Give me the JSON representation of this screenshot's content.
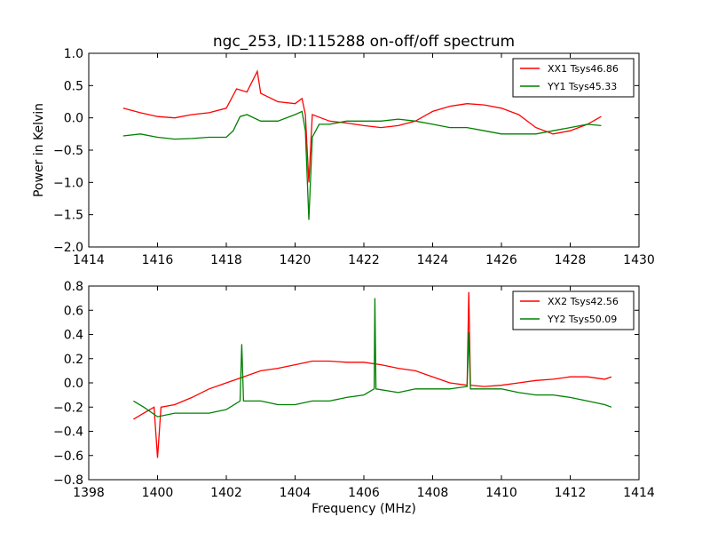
{
  "chart_data": [
    {
      "type": "line",
      "title": "ngc_253, ID:115288 on-off/off spectrum",
      "xlabel": "",
      "ylabel": "Power in Kelvin",
      "xlim": [
        1414,
        1430
      ],
      "ylim": [
        -2.0,
        1.0
      ],
      "xticks": [
        "1414",
        "1416",
        "1418",
        "1420",
        "1422",
        "1424",
        "1426",
        "1428",
        "1430"
      ],
      "yticks": [
        "−2.0",
        "−1.5",
        "−1.0",
        "−0.5",
        "0.0",
        "0.5",
        "1.0"
      ],
      "legend_position": "top-right",
      "grid": false,
      "series": [
        {
          "name": "XX1 Tsys46.86",
          "color": "#ff0000",
          "points": [
            [
              1415.0,
              0.15
            ],
            [
              1415.5,
              0.08
            ],
            [
              1416.0,
              0.02
            ],
            [
              1416.5,
              0.0
            ],
            [
              1417.0,
              0.05
            ],
            [
              1417.5,
              0.08
            ],
            [
              1418.0,
              0.15
            ],
            [
              1418.3,
              0.45
            ],
            [
              1418.6,
              0.4
            ],
            [
              1418.9,
              0.72
            ],
            [
              1419.0,
              0.38
            ],
            [
              1419.5,
              0.25
            ],
            [
              1420.0,
              0.22
            ],
            [
              1420.2,
              0.3
            ],
            [
              1420.3,
              0.05
            ],
            [
              1420.4,
              -1.0
            ],
            [
              1420.5,
              0.05
            ],
            [
              1421.0,
              -0.05
            ],
            [
              1421.5,
              -0.08
            ],
            [
              1422.0,
              -0.12
            ],
            [
              1422.5,
              -0.15
            ],
            [
              1423.0,
              -0.12
            ],
            [
              1423.5,
              -0.05
            ],
            [
              1424.0,
              0.1
            ],
            [
              1424.5,
              0.18
            ],
            [
              1425.0,
              0.22
            ],
            [
              1425.5,
              0.2
            ],
            [
              1426.0,
              0.15
            ],
            [
              1426.5,
              0.05
            ],
            [
              1427.0,
              -0.15
            ],
            [
              1427.5,
              -0.25
            ],
            [
              1428.0,
              -0.2
            ],
            [
              1428.5,
              -0.1
            ],
            [
              1428.9,
              0.02
            ]
          ]
        },
        {
          "name": "YY1 Tsys45.33",
          "color": "#008000",
          "points": [
            [
              1415.0,
              -0.28
            ],
            [
              1415.5,
              -0.25
            ],
            [
              1416.0,
              -0.3
            ],
            [
              1416.5,
              -0.33
            ],
            [
              1417.0,
              -0.32
            ],
            [
              1417.5,
              -0.3
            ],
            [
              1418.0,
              -0.3
            ],
            [
              1418.2,
              -0.2
            ],
            [
              1418.4,
              0.02
            ],
            [
              1418.6,
              0.05
            ],
            [
              1419.0,
              -0.05
            ],
            [
              1419.5,
              -0.05
            ],
            [
              1420.0,
              0.05
            ],
            [
              1420.2,
              0.1
            ],
            [
              1420.3,
              -0.2
            ],
            [
              1420.4,
              -1.58
            ],
            [
              1420.5,
              -0.3
            ],
            [
              1420.7,
              -0.1
            ],
            [
              1421.0,
              -0.1
            ],
            [
              1421.5,
              -0.05
            ],
            [
              1422.0,
              -0.05
            ],
            [
              1422.5,
              -0.05
            ],
            [
              1423.0,
              -0.02
            ],
            [
              1423.5,
              -0.05
            ],
            [
              1424.0,
              -0.1
            ],
            [
              1424.5,
              -0.15
            ],
            [
              1425.0,
              -0.15
            ],
            [
              1425.5,
              -0.2
            ],
            [
              1426.0,
              -0.25
            ],
            [
              1426.5,
              -0.25
            ],
            [
              1427.0,
              -0.25
            ],
            [
              1427.5,
              -0.2
            ],
            [
              1428.0,
              -0.15
            ],
            [
              1428.5,
              -0.1
            ],
            [
              1428.9,
              -0.12
            ]
          ]
        }
      ]
    },
    {
      "type": "line",
      "title": "",
      "xlabel": "Frequency (MHz)",
      "ylabel": "",
      "xlim": [
        1398,
        1414
      ],
      "ylim": [
        -0.8,
        0.8
      ],
      "xticks": [
        "1398",
        "1400",
        "1402",
        "1404",
        "1406",
        "1408",
        "1410",
        "1412",
        "1414"
      ],
      "yticks": [
        "−0.8",
        "−0.6",
        "−0.4",
        "−0.2",
        "0.0",
        "0.2",
        "0.4",
        "0.6",
        "0.8"
      ],
      "legend_position": "top-right",
      "grid": false,
      "series": [
        {
          "name": "XX2 Tsys42.56",
          "color": "#ff0000",
          "points": [
            [
              1399.3,
              -0.3
            ],
            [
              1399.6,
              -0.25
            ],
            [
              1399.9,
              -0.2
            ],
            [
              1400.0,
              -0.62
            ],
            [
              1400.1,
              -0.2
            ],
            [
              1400.5,
              -0.18
            ],
            [
              1401.0,
              -0.12
            ],
            [
              1401.5,
              -0.05
            ],
            [
              1402.0,
              0.0
            ],
            [
              1402.5,
              0.05
            ],
            [
              1403.0,
              0.1
            ],
            [
              1403.5,
              0.12
            ],
            [
              1404.0,
              0.15
            ],
            [
              1404.5,
              0.18
            ],
            [
              1405.0,
              0.18
            ],
            [
              1405.5,
              0.17
            ],
            [
              1406.0,
              0.17
            ],
            [
              1406.5,
              0.15
            ],
            [
              1407.0,
              0.12
            ],
            [
              1407.5,
              0.1
            ],
            [
              1408.0,
              0.05
            ],
            [
              1408.5,
              0.0
            ],
            [
              1409.0,
              -0.02
            ],
            [
              1409.05,
              0.75
            ],
            [
              1409.1,
              -0.02
            ],
            [
              1409.5,
              -0.03
            ],
            [
              1410.0,
              -0.02
            ],
            [
              1410.5,
              0.0
            ],
            [
              1411.0,
              0.02
            ],
            [
              1411.5,
              0.03
            ],
            [
              1412.0,
              0.05
            ],
            [
              1412.5,
              0.05
            ],
            [
              1413.0,
              0.03
            ],
            [
              1413.2,
              0.05
            ]
          ]
        },
        {
          "name": "YY2 Tsys50.09",
          "color": "#008000",
          "points": [
            [
              1399.3,
              -0.15
            ],
            [
              1399.6,
              -0.2
            ],
            [
              1400.0,
              -0.28
            ],
            [
              1400.5,
              -0.25
            ],
            [
              1401.0,
              -0.25
            ],
            [
              1401.5,
              -0.25
            ],
            [
              1402.0,
              -0.22
            ],
            [
              1402.4,
              -0.15
            ],
            [
              1402.45,
              0.32
            ],
            [
              1402.5,
              -0.15
            ],
            [
              1403.0,
              -0.15
            ],
            [
              1403.5,
              -0.18
            ],
            [
              1404.0,
              -0.18
            ],
            [
              1404.5,
              -0.15
            ],
            [
              1405.0,
              -0.15
            ],
            [
              1405.5,
              -0.12
            ],
            [
              1406.0,
              -0.1
            ],
            [
              1406.3,
              -0.05
            ],
            [
              1406.32,
              0.7
            ],
            [
              1406.35,
              -0.05
            ],
            [
              1407.0,
              -0.08
            ],
            [
              1407.5,
              -0.05
            ],
            [
              1408.0,
              -0.05
            ],
            [
              1408.5,
              -0.05
            ],
            [
              1409.0,
              -0.03
            ],
            [
              1409.05,
              0.42
            ],
            [
              1409.1,
              -0.05
            ],
            [
              1409.5,
              -0.05
            ],
            [
              1410.0,
              -0.05
            ],
            [
              1410.5,
              -0.08
            ],
            [
              1411.0,
              -0.1
            ],
            [
              1411.5,
              -0.1
            ],
            [
              1412.0,
              -0.12
            ],
            [
              1412.5,
              -0.15
            ],
            [
              1413.0,
              -0.18
            ],
            [
              1413.2,
              -0.2
            ]
          ]
        }
      ]
    }
  ]
}
